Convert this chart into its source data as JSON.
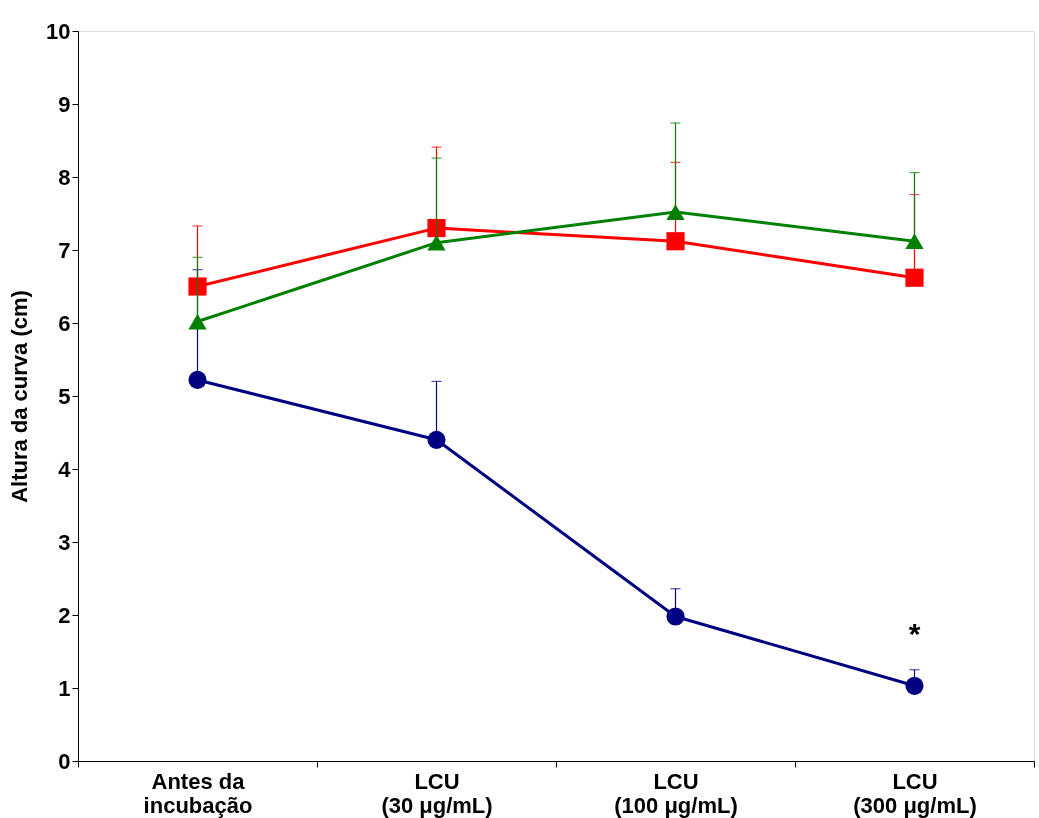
{
  "chart_data": {
    "type": "line",
    "ylabel": "Altura da curva (cm)",
    "categories": [
      "Antes da\nincubação",
      "LCU\n(30 μg/mL)",
      "LCU\n(100 μg/mL)",
      "LCU\n(300 μg/mL)"
    ],
    "series": [
      {
        "color": "#000080",
        "marker": "circle",
        "values": [
          5.22,
          4.4,
          1.98,
          1.03
        ],
        "errors": [
          [
            5.22,
            6.73
          ],
          [
            4.4,
            5.2
          ],
          [
            1.98,
            2.36
          ],
          [
            1.03,
            1.25
          ]
        ]
      },
      {
        "color": "#ff0000",
        "marker": "square",
        "values": [
          6.5,
          7.3,
          7.12,
          6.62
        ],
        "errors": [
          [
            6.5,
            7.33
          ],
          [
            7.3,
            8.41
          ],
          [
            7.12,
            8.2
          ],
          [
            6.62,
            7.76
          ]
        ]
      },
      {
        "color": "#008000",
        "marker": "triangle",
        "values": [
          6.02,
          7.1,
          7.52,
          7.12
        ],
        "errors": [
          [
            6.02,
            6.9
          ],
          [
            7.1,
            8.26
          ],
          [
            7.52,
            8.74
          ],
          [
            7.12,
            8.06
          ]
        ]
      }
    ],
    "ylim": [
      0,
      10
    ],
    "yticks": [
      0,
      1,
      2,
      3,
      4,
      5,
      6,
      7,
      8,
      9,
      10
    ],
    "annotations": [
      "*"
    ],
    "grid": false
  }
}
